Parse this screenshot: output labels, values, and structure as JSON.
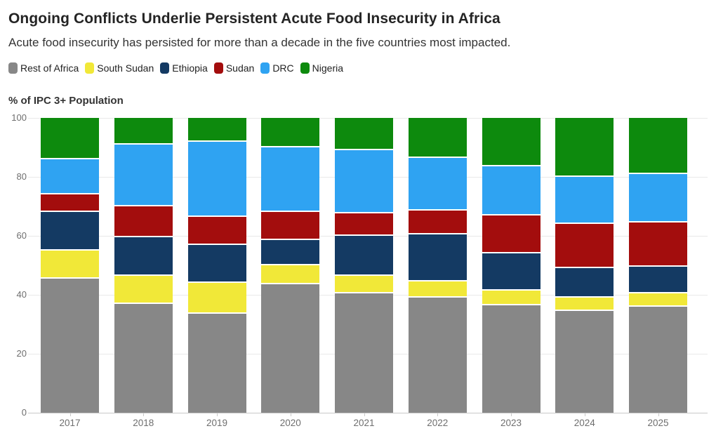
{
  "header": {
    "title": "Ongoing Conflicts Underlie Persistent Acute Food Insecurity in Africa",
    "subtitle": "Acute food insecurity has persisted for more than a decade in the five countries most impacted."
  },
  "axis": {
    "y_title": "% of IPC 3+ Population"
  },
  "colors": {
    "background": "#ffffff",
    "gridline": "#e9e9e9",
    "baseline": "#c9c9c9",
    "tick_text": "#6e6e6e",
    "title_text": "#242424",
    "body_text": "#333333"
  },
  "chart_data": {
    "type": "bar",
    "stacked": true,
    "stack_total": 100,
    "title": "Ongoing Conflicts Underlie Persistent Acute Food Insecurity in Africa",
    "subtitle": "Acute food insecurity has persisted for more than a decade in the five countries most impacted.",
    "ylabel": "% of IPC 3+ Population",
    "xlabel": "",
    "ylim": [
      0,
      100
    ],
    "y_ticks": [
      0,
      20,
      40,
      60,
      80,
      100
    ],
    "grid": "horizontal",
    "legend_position": "top",
    "categories": [
      "2017",
      "2018",
      "2019",
      "2020",
      "2021",
      "2022",
      "2023",
      "2024",
      "2025"
    ],
    "series": [
      {
        "name": "Rest of Africa",
        "color": "#878787",
        "values": [
          46,
          37.5,
          34,
          44,
          41,
          39.5,
          37,
          35,
          36.5
        ]
      },
      {
        "name": "South Sudan",
        "color": "#f1e838",
        "values": [
          9.5,
          9.5,
          10.5,
          6.5,
          6,
          5.5,
          5,
          4.5,
          4.5
        ]
      },
      {
        "name": "Ethiopia",
        "color": "#143a63",
        "values": [
          13,
          13,
          13,
          8.5,
          13.5,
          16,
          12.5,
          10,
          9
        ]
      },
      {
        "name": "Sudan",
        "color": "#a30d0d",
        "values": [
          6,
          10.5,
          9.5,
          9.5,
          7.5,
          8,
          13,
          15,
          15
        ]
      },
      {
        "name": "DRC",
        "color": "#2fa3f2",
        "values": [
          12,
          21,
          25.5,
          22,
          21.5,
          18,
          16.5,
          16,
          16.5
        ]
      },
      {
        "name": "Nigeria",
        "color": "#0d8a0d",
        "values": [
          13.5,
          8.5,
          7.5,
          9.5,
          10.5,
          13,
          16,
          19.5,
          18.5
        ]
      }
    ]
  }
}
